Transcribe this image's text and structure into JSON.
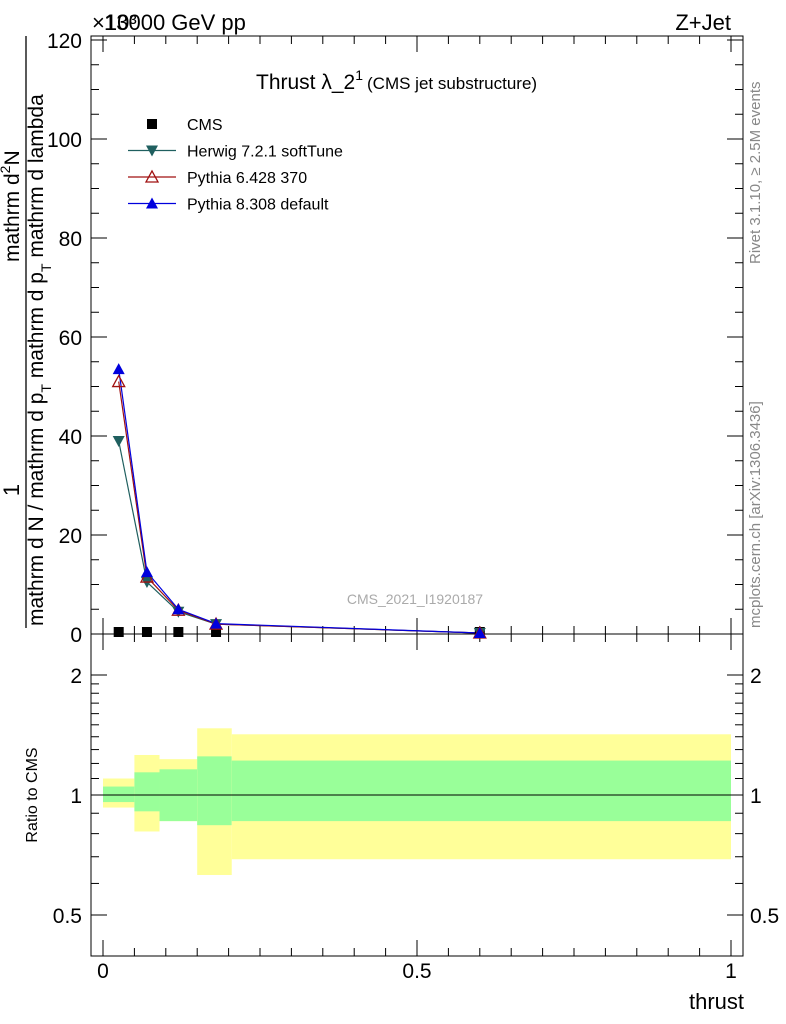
{
  "header": {
    "energy_label": "13000 GeV pp",
    "process_label": "Z+Jet",
    "exponent_label": "×10³"
  },
  "side_text": {
    "rivet": "Rivet 3.1.10, ≥ 2.5M events",
    "mcplots": "mcplots.cern.ch [arXiv:1306.3436]"
  },
  "watermark": "CMS_2021_I1920187",
  "chart_data": [
    {
      "type": "line",
      "title": "Thrust λ_2",
      "title_superscript": "1",
      "subtitle": "(CMS jet substructure)",
      "ylabel": {
        "prefix": "1",
        "numerator": "mathrm d",
        "numerator_super": "2",
        "numerator_end": "N",
        "denominator": "mathrm d N / mathrm d p",
        "denominator_sub": "T",
        "denominator_end": " mathrm d p",
        "denominator_sub2": "T",
        "denominator_end2": " mathrm d lambda"
      },
      "ylim": [
        0,
        120
      ],
      "xlim": [
        0,
        1
      ],
      "yticks": [
        "0",
        "20",
        "40",
        "60",
        "80",
        "100",
        "120"
      ],
      "legend_position": "top-left",
      "series": [
        {
          "name": "CMS",
          "color": "#000000",
          "marker": "square",
          "x": [
            0.025,
            0.07,
            0.12,
            0.18,
            0.6
          ],
          "y": [
            0.25,
            0.25,
            0.25,
            0.25,
            0.25
          ]
        },
        {
          "name": "Herwig 7.2.1 softTune",
          "color": "#1f5f5f",
          "marker": "triangle-down",
          "x": [
            0.025,
            0.07,
            0.12,
            0.18,
            0.6
          ],
          "y": [
            39,
            10.5,
            4.5,
            2.0,
            0.2
          ]
        },
        {
          "name": "Pythia 6.428 370",
          "color": "#a01010",
          "marker": "triangle-up-open",
          "x": [
            0.025,
            0.07,
            0.12,
            0.18,
            0.6
          ],
          "y": [
            51,
            11.5,
            4.8,
            2.0,
            0.2
          ]
        },
        {
          "name": "Pythia 8.308 default",
          "color": "#0000dd",
          "marker": "triangle-up",
          "x": [
            0.025,
            0.07,
            0.12,
            0.18,
            0.6
          ],
          "y": [
            53.5,
            12.5,
            5.0,
            2.1,
            0.2
          ]
        }
      ]
    },
    {
      "type": "area",
      "xlabel": "thrust",
      "ylabel": "Ratio to CMS",
      "ylim": [
        0.5,
        2.2
      ],
      "xlim": [
        0,
        1
      ],
      "xticks": [
        "0",
        "0.5",
        "1"
      ],
      "yticks": [
        "0.5",
        "1",
        "2"
      ],
      "bins": [
        {
          "x_lo": 0.0,
          "x_hi": 0.05,
          "stat_lo": 0.96,
          "stat_hi": 1.05,
          "total_lo": 0.93,
          "total_hi": 1.1
        },
        {
          "x_lo": 0.05,
          "x_hi": 0.09,
          "stat_lo": 0.91,
          "stat_hi": 1.14,
          "total_lo": 0.81,
          "total_hi": 1.26
        },
        {
          "x_lo": 0.09,
          "x_hi": 0.15,
          "stat_lo": 0.86,
          "stat_hi": 1.16,
          "total_lo": 0.86,
          "total_hi": 1.23
        },
        {
          "x_lo": 0.15,
          "x_hi": 0.205,
          "stat_lo": 0.84,
          "stat_hi": 1.25,
          "total_lo": 0.63,
          "total_hi": 1.47
        },
        {
          "x_lo": 0.205,
          "x_hi": 1.0,
          "stat_lo": 0.86,
          "stat_hi": 1.22,
          "total_lo": 0.69,
          "total_hi": 1.42
        }
      ],
      "stat_color": "#99ff99",
      "total_color": "#ffff99"
    }
  ]
}
